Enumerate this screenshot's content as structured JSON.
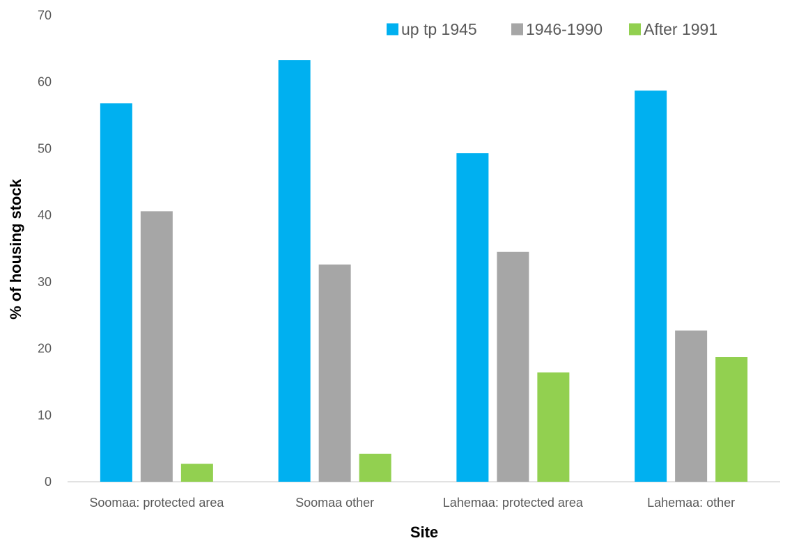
{
  "chart_data": {
    "type": "bar",
    "title": "",
    "xlabel": "Site",
    "ylabel": "% of housing stock",
    "categories": [
      "Soomaa: protected area",
      "Soomaa other",
      "Lahemaa: protected area",
      "Lahemaa: other"
    ],
    "series": [
      {
        "name": "up tp 1945",
        "color": "#00B0F0",
        "values": [
          56.8,
          63.3,
          49.3,
          58.7
        ]
      },
      {
        "name": "1946-1990",
        "color": "#A6A6A6",
        "values": [
          40.6,
          32.6,
          34.5,
          22.7
        ]
      },
      {
        "name": "After 1991",
        "color": "#92D050",
        "values": [
          2.7,
          4.2,
          16.4,
          18.7
        ]
      }
    ],
    "ylim": [
      0,
      70
    ],
    "yticks": [
      "0",
      "10",
      "20",
      "30",
      "40",
      "50",
      "60",
      "70"
    ],
    "grid": false,
    "legend_position": "top-right"
  }
}
